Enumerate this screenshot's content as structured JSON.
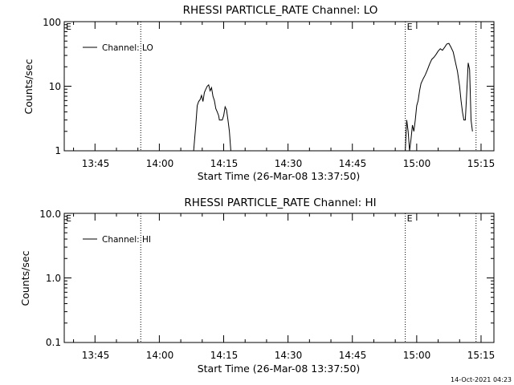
{
  "chart_data": [
    {
      "type": "line",
      "title": "RHESSI PARTICLE_RATE Channel: LO",
      "xlabel": "Start Time (26-Mar-08 13:37:50)",
      "ylabel": "Counts/sec",
      "yscale": "log",
      "ylim": [
        1,
        100
      ],
      "xlim": [
        "13:37:50",
        "15:18:00"
      ],
      "xticks": [
        "13:45",
        "14:00",
        "14:15",
        "14:30",
        "14:45",
        "15:00",
        "15:15"
      ],
      "yticks": [
        "1",
        "10",
        "100"
      ],
      "grid": false,
      "legend": "top-left",
      "series": [
        {
          "name": "Channel: LO",
          "x": [
            "14:08:00",
            "14:08:30",
            "14:08:50",
            "14:09:10",
            "14:09:30",
            "14:09:50",
            "14:10:10",
            "14:10:30",
            "14:10:50",
            "14:11:10",
            "14:11:30",
            "14:11:50",
            "14:12:10",
            "14:12:30",
            "14:12:50",
            "14:13:10",
            "14:13:30",
            "14:13:50",
            "14:14:00",
            "14:14:10",
            "14:14:20",
            "14:14:30",
            "14:14:40",
            "14:15:00",
            "14:15:20",
            "14:15:40",
            "14:16:00",
            "14:16:20",
            "14:16:40",
            "14:17:00",
            "14:17:20",
            "14:57:20",
            "14:57:40",
            "14:58:00",
            "14:58:20",
            "14:58:40",
            "14:59:00",
            "14:59:20",
            "14:59:40",
            "15:00:00",
            "15:00:20",
            "15:00:40",
            "15:01:00",
            "15:01:30",
            "15:02:00",
            "15:02:30",
            "15:03:00",
            "15:03:30",
            "15:04:00",
            "15:04:30",
            "15:05:00",
            "15:05:30",
            "15:06:00",
            "15:06:30",
            "15:07:00",
            "15:07:30",
            "15:08:00",
            "15:08:30",
            "15:09:00",
            "15:09:30",
            "15:10:00",
            "15:10:20",
            "15:10:40",
            "15:11:00",
            "15:11:20",
            "15:11:40",
            "15:12:00",
            "15:12:20",
            "15:12:40",
            "15:13:00"
          ],
          "y": [
            1.0,
            2.5,
            5.0,
            5.8,
            6.2,
            7.2,
            5.8,
            8.0,
            9.0,
            10.0,
            10.5,
            8.5,
            9.5,
            7.0,
            6.0,
            4.5,
            4.0,
            3.5,
            3.0,
            3.0,
            3.0,
            3.0,
            3.0,
            3.5,
            4.8,
            4.3,
            3.0,
            2.0,
            1.0,
            1.0,
            1.0,
            1.0,
            3.0,
            2.0,
            1.0,
            1.5,
            2.5,
            2.0,
            3.0,
            5.0,
            6.0,
            8.5,
            11.0,
            13.0,
            15.0,
            18.0,
            22.0,
            26.0,
            28.0,
            31.0,
            35.0,
            38.0,
            36.0,
            40.0,
            45.0,
            46.0,
            40.0,
            34.0,
            24.0,
            17.0,
            10.0,
            6.0,
            4.0,
            3.0,
            3.0,
            8.0,
            23.0,
            18.0,
            3.0,
            2.0
          ]
        }
      ],
      "annotations": [
        {
          "text": "E",
          "at": "13:37:50"
        },
        {
          "text": "E",
          "at": "14:57:20"
        }
      ],
      "vlines": [
        "13:55:40",
        "14:57:20",
        "15:13:50"
      ]
    },
    {
      "type": "line",
      "title": "RHESSI PARTICLE_RATE Channel: HI",
      "xlabel": "Start Time (26-Mar-08 13:37:50)",
      "ylabel": "Counts/sec",
      "yscale": "log",
      "ylim": [
        0.1,
        10.0
      ],
      "xlim": [
        "13:37:50",
        "15:18:00"
      ],
      "xticks": [
        "13:45",
        "14:00",
        "14:15",
        "14:30",
        "14:45",
        "15:00",
        "15:15"
      ],
      "yticks": [
        "0.1",
        "1.0",
        "10.0"
      ],
      "grid": false,
      "legend": "top-left",
      "series": [
        {
          "name": "Channel: HI",
          "x": [],
          "y": []
        }
      ],
      "annotations": [
        {
          "text": "E",
          "at": "13:37:50"
        },
        {
          "text": "E",
          "at": "14:57:20"
        }
      ],
      "vlines": [
        "13:55:40",
        "14:57:20",
        "15:13:50"
      ]
    }
  ],
  "footer": {
    "timestamp": "14-Oct-2021 04:23"
  }
}
